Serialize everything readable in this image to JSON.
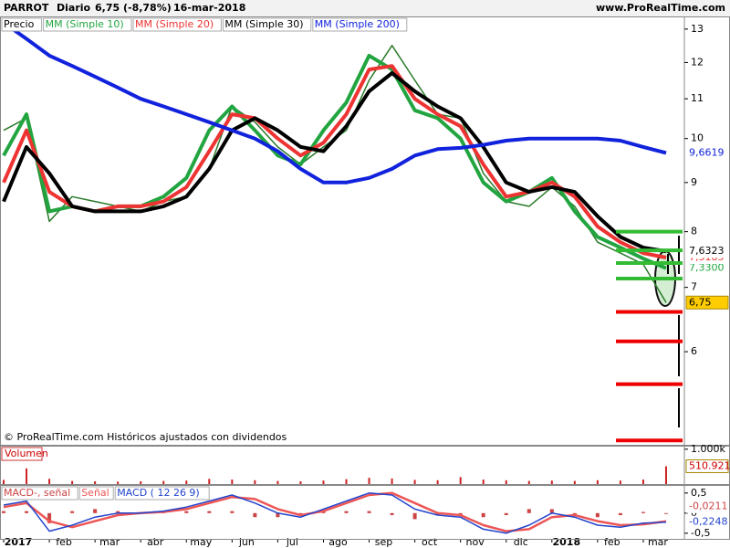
{
  "header": {
    "symbol": "PARROT",
    "period": "Diario",
    "change": "6,75 (-8,78%)",
    "date": "16-mar-2018",
    "site": "www.ProRealTime.com"
  },
  "chart_data": [
    {
      "type": "line",
      "log_scale": true,
      "footnote": "© ProRealTime.com  Históricos ajustados con dividendos",
      "x": [
        0,
        0.5,
        1,
        1.5,
        2,
        2.5,
        3,
        3.5,
        4,
        4.5,
        5,
        5.5,
        6,
        6.5,
        7,
        7.5,
        8,
        8.5,
        9,
        9.5,
        10,
        10.5,
        11,
        11.5,
        12,
        12.5,
        13,
        13.5,
        14,
        14.5
      ],
      "xlim": [
        0,
        14.9
      ],
      "xticks": [
        {
          "value": 0,
          "label": "2017"
        },
        {
          "value": 1,
          "label": "feb"
        },
        {
          "value": 2,
          "label": "mar"
        },
        {
          "value": 3,
          "label": "abr"
        },
        {
          "value": 4,
          "label": "may"
        },
        {
          "value": 5,
          "label": "jun"
        },
        {
          "value": 6,
          "label": "jul"
        },
        {
          "value": 7,
          "label": "ago"
        },
        {
          "value": 8,
          "label": "sep"
        },
        {
          "value": 9,
          "label": "oct"
        },
        {
          "value": 10,
          "label": "nov"
        },
        {
          "value": 11,
          "label": "dic"
        },
        {
          "value": 12,
          "label": "2018"
        },
        {
          "value": 13,
          "label": "feb"
        },
        {
          "value": 14,
          "label": "mar"
        }
      ],
      "ylim": [
        4.8,
        13.4
      ],
      "yticks": [
        13,
        12,
        11,
        10,
        9,
        8,
        7,
        6
      ],
      "series": [
        {
          "name": "Precio",
          "color": "#2a7a2a",
          "width": 1.5,
          "last_label": "6,75",
          "values": [
            10.2,
            10.5,
            8.2,
            8.7,
            8.6,
            8.5,
            8.4,
            8.6,
            8.7,
            9.3,
            10.8,
            10.4,
            9.8,
            9.4,
            9.8,
            10.2,
            11.5,
            12.5,
            11.5,
            10.6,
            10.5,
            9.2,
            8.6,
            8.5,
            8.9,
            8.5,
            7.8,
            7.6,
            7.4,
            6.75
          ]
        },
        {
          "name": "MM (Simple 10)",
          "color": "#22a540",
          "width": 4,
          "last_label": "7,3300",
          "values": [
            9.6,
            10.6,
            8.4,
            8.5,
            8.4,
            8.5,
            8.5,
            8.7,
            9.1,
            10.2,
            10.8,
            10.2,
            9.6,
            9.4,
            10.2,
            10.9,
            12.2,
            11.8,
            10.7,
            10.5,
            10.0,
            9.0,
            8.6,
            8.8,
            9.1,
            8.4,
            7.9,
            7.7,
            7.5,
            7.33
          ]
        },
        {
          "name": "MM (Simple 20)",
          "color": "#ee3333",
          "width": 4,
          "last_label": "7,5185",
          "values": [
            9.0,
            10.2,
            8.8,
            8.5,
            8.4,
            8.5,
            8.5,
            8.6,
            8.9,
            9.7,
            10.6,
            10.5,
            10.0,
            9.6,
            9.9,
            10.6,
            11.8,
            11.9,
            11.0,
            10.6,
            10.3,
            9.4,
            8.7,
            8.8,
            9.0,
            8.7,
            8.1,
            7.8,
            7.6,
            7.5185
          ]
        },
        {
          "name": "MM (Simple 30)",
          "color": "#000000",
          "width": 4,
          "last_label": "7,6323",
          "values": [
            8.6,
            9.8,
            9.2,
            8.5,
            8.4,
            8.4,
            8.4,
            8.5,
            8.7,
            9.3,
            10.2,
            10.5,
            10.2,
            9.8,
            9.7,
            10.3,
            11.2,
            11.7,
            11.2,
            10.8,
            10.5,
            9.8,
            9.0,
            8.8,
            8.9,
            8.8,
            8.3,
            7.9,
            7.7,
            7.6323
          ]
        },
        {
          "name": "MM (Simple 200)",
          "color": "#1122dd",
          "width": 4,
          "last_label": "9,6619",
          "values": [
            13.2,
            12.7,
            12.2,
            11.9,
            11.6,
            11.3,
            11.0,
            10.8,
            10.6,
            10.4,
            10.2,
            10.0,
            9.7,
            9.3,
            9.0,
            9.0,
            9.1,
            9.3,
            9.6,
            9.75,
            9.78,
            9.85,
            9.95,
            10.0,
            10.0,
            10.0,
            10.0,
            9.95,
            9.8,
            9.6619
          ]
        }
      ],
      "levels": [
        {
          "value": 8.0,
          "color": "#33bb33"
        },
        {
          "value": 7.65,
          "color": "#33bb33"
        },
        {
          "value": 7.42,
          "color": "#33bb33"
        },
        {
          "value": 7.15,
          "color": "#33bb33"
        },
        {
          "value": 6.6,
          "color": "#ee0000"
        },
        {
          "value": 6.15,
          "color": "#ee0000"
        },
        {
          "value": 5.55,
          "color": "#ee0000"
        },
        {
          "value": 4.85,
          "color": "#ee0000"
        }
      ]
    },
    {
      "type": "bar",
      "title": "Volumen",
      "color": "#cc2222",
      "last_label": "510.921",
      "x": [
        0,
        0.5,
        1,
        1.5,
        2,
        2.5,
        3,
        3.5,
        4,
        4.5,
        5,
        5.5,
        6,
        6.5,
        7,
        7.5,
        8,
        8.5,
        9,
        9.5,
        10,
        10.5,
        11,
        11.5,
        12,
        12.5,
        13,
        13.5,
        14,
        14.5
      ],
      "xlim": [
        0,
        14.9
      ],
      "ylim": [
        0,
        1100
      ],
      "yticks": [
        {
          "value": 1000,
          "label": "1.000k"
        }
      ],
      "values": [
        120,
        450,
        150,
        90,
        80,
        70,
        80,
        90,
        100,
        150,
        130,
        110,
        90,
        80,
        100,
        140,
        180,
        160,
        120,
        110,
        200,
        130,
        110,
        90,
        100,
        90,
        110,
        100,
        130,
        510.921
      ]
    },
    {
      "type": "line",
      "x": [
        0,
        0.5,
        1,
        1.5,
        2,
        2.5,
        3,
        3.5,
        4,
        4.5,
        5,
        5.5,
        6,
        6.5,
        7,
        7.5,
        8,
        8.5,
        9,
        9.5,
        10,
        10.5,
        11,
        11.5,
        12,
        12.5,
        13,
        13.5,
        14,
        14.5
      ],
      "xlim": [
        0,
        14.9
      ],
      "ylim": [
        -0.64,
        0.7
      ],
      "yticks": [
        {
          "value": 0.5,
          "label": "0,5"
        },
        0,
        {
          "value": -0.5,
          "label": "-0,5"
        }
      ],
      "series": [
        {
          "name": "MACD-, señal",
          "style": "bar",
          "color": "#cc4444",
          "last_label": "-0,0211",
          "values": [
            0.05,
            0.05,
            -0.25,
            0.05,
            0.1,
            0.05,
            0,
            0.02,
            0.05,
            0.05,
            0.05,
            -0.1,
            -0.1,
            -0.05,
            0.05,
            0.05,
            0.05,
            -0.05,
            -0.15,
            -0.05,
            -0.05,
            -0.1,
            -0.05,
            0.1,
            0.1,
            -0.05,
            -0.1,
            -0.05,
            0.03,
            -0.0211
          ]
        },
        {
          "name": "Señal",
          "color": "#ee5555",
          "width": 2.5,
          "values": [
            0.15,
            0.25,
            -0.2,
            -0.35,
            -0.2,
            -0.05,
            0,
            0.03,
            0.1,
            0.25,
            0.4,
            0.35,
            0.1,
            -0.05,
            0.05,
            0.25,
            0.45,
            0.5,
            0.25,
            0,
            -0.05,
            -0.3,
            -0.45,
            -0.4,
            -0.1,
            -0.05,
            -0.2,
            -0.3,
            -0.28,
            -0.2037
          ]
        },
        {
          "name": "MACD ( 12 26 9)",
          "color": "#2244cc",
          "width": 1.5,
          "last_label": "-0,2248",
          "values": [
            0.2,
            0.3,
            -0.45,
            -0.3,
            -0.1,
            0,
            0,
            0.05,
            0.15,
            0.3,
            0.45,
            0.25,
            0,
            -0.1,
            0.1,
            0.3,
            0.5,
            0.45,
            0.1,
            -0.05,
            -0.1,
            -0.4,
            -0.5,
            -0.3,
            0,
            -0.1,
            -0.3,
            -0.35,
            -0.25,
            -0.2248
          ]
        }
      ]
    }
  ]
}
